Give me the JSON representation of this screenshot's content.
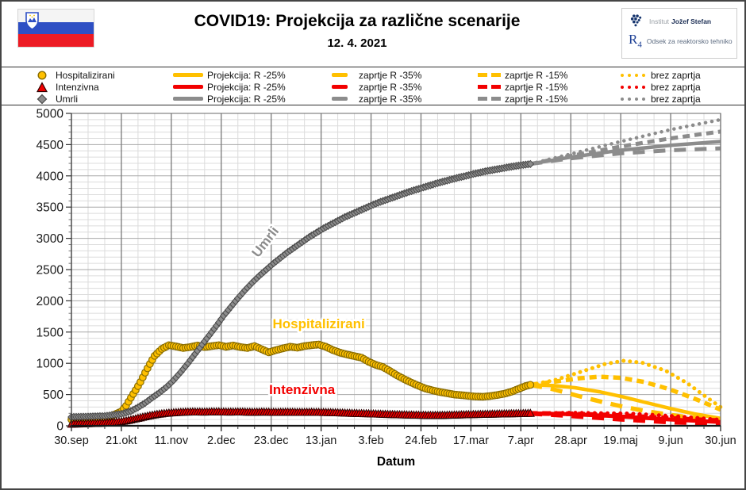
{
  "header": {
    "title": "COVID19: Projekcija za različne scenarije",
    "date": "12. 4. 2021",
    "flag": "slovenia-flag",
    "logo": {
      "institute_light": "Institut",
      "institute_bold": "Jožef Stefan",
      "r": "R",
      "r_sub": "4",
      "dept": "Odsek za reaktorsko tehniko"
    }
  },
  "legend": {
    "rows": [
      {
        "series": "Hospitalizirani",
        "marker": "circle",
        "color": "#FFC000",
        "outline": "#8A6D00",
        "items": [
          "Projekcija: R -25%",
          "zaprtje R -35%",
          "zaprtje R -15%",
          "brez zaprtja"
        ]
      },
      {
        "series": "Intenzivna",
        "marker": "triangle",
        "color": "#F20000",
        "outline": "#2D0000",
        "items": [
          "Projekcija: R -25%",
          "zaprtje R -35%",
          "zaprtje R -15%",
          "brez zaprtja"
        ]
      },
      {
        "series": "Umrli",
        "marker": "diamond",
        "color": "#8C8C8C",
        "outline": "#4A4A4A",
        "items": [
          "Projekcija: R -25%",
          "zaprtje R -35%",
          "zaprtje R -15%",
          "brez zaprtja"
        ]
      }
    ]
  },
  "chart_data": {
    "type": "line",
    "xlabel": "Datum",
    "ylabel": "",
    "ylim": [
      0,
      5000
    ],
    "y_ticks": [
      0,
      500,
      1000,
      1500,
      2000,
      2500,
      3000,
      3500,
      4000,
      4500,
      5000
    ],
    "x_ticks": [
      "30.sep",
      "21.okt",
      "11.nov",
      "2.dec",
      "23.dec",
      "13.jan",
      "3.feb",
      "24.feb",
      "17.mar",
      "7.apr",
      "28.apr",
      "19.maj",
      "9.jun",
      "30.jun"
    ],
    "x_tick_step_days": 21,
    "x_total_days": 273,
    "minor_grid": {
      "y_step": 100,
      "x_step_days": 7
    },
    "grid": "on",
    "legend_position": "top",
    "annotations": [
      {
        "text": "Umrli",
        "day": 83,
        "value": 2900,
        "rotate": -52,
        "color": "#8C8C8C"
      },
      {
        "text": "Hospitalizirani",
        "day": 104,
        "value": 1560,
        "rotate": 0,
        "color": "#FFC000"
      },
      {
        "text": "Intenzivna",
        "day": 97,
        "value": 505,
        "rotate": 0,
        "color": "#F20000"
      }
    ],
    "series": [
      {
        "name": "Hospitalizirani Projekcija: R -25%",
        "kind": "proj",
        "style": "solid",
        "color": "#FFC000",
        "w": 4.5,
        "points": [
          [
            193,
            655
          ],
          [
            203,
            642
          ],
          [
            212,
            608
          ],
          [
            222,
            545
          ],
          [
            232,
            462
          ],
          [
            242,
            368
          ],
          [
            252,
            275
          ],
          [
            262,
            190
          ],
          [
            273,
            118
          ]
        ]
      },
      {
        "name": "Hospitalizirani zaprtje R -35%",
        "kind": "proj",
        "style": "dash-long",
        "color": "#FFC000",
        "w": 5.5,
        "points": [
          [
            193,
            655
          ],
          [
            202,
            590
          ],
          [
            212,
            488
          ],
          [
            222,
            392
          ],
          [
            232,
            305
          ],
          [
            242,
            232
          ],
          [
            252,
            172
          ],
          [
            262,
            125
          ],
          [
            273,
            88
          ]
        ]
      },
      {
        "name": "Hospitalizirani zaprtje R -15%",
        "kind": "proj",
        "style": "dash-med",
        "color": "#FFC000",
        "w": 5.5,
        "points": [
          [
            193,
            655
          ],
          [
            203,
            705
          ],
          [
            214,
            762
          ],
          [
            222,
            785
          ],
          [
            231,
            768
          ],
          [
            241,
            700
          ],
          [
            251,
            590
          ],
          [
            261,
            450
          ],
          [
            268,
            340
          ],
          [
            273,
            258
          ]
        ]
      },
      {
        "name": "Hospitalizirani brez zaprtja",
        "kind": "proj",
        "style": "dotted",
        "color": "#FFC000",
        "w": 5,
        "points": [
          [
            193,
            655
          ],
          [
            203,
            728
          ],
          [
            214,
            860
          ],
          [
            224,
            985
          ],
          [
            232,
            1040
          ],
          [
            240,
            1010
          ],
          [
            250,
            880
          ],
          [
            259,
            680
          ],
          [
            267,
            460
          ],
          [
            273,
            300
          ]
        ]
      },
      {
        "name": "Umrli Projekcija: R -25%",
        "kind": "proj",
        "style": "solid",
        "color": "#8C8C8C",
        "w": 4.5,
        "points": [
          [
            193,
            4190
          ],
          [
            210,
            4300
          ],
          [
            231,
            4410
          ],
          [
            252,
            4490
          ],
          [
            273,
            4550
          ]
        ]
      },
      {
        "name": "Umrli zaprtje R -35%",
        "kind": "proj",
        "style": "dash-long",
        "color": "#8C8C8C",
        "w": 5,
        "points": [
          [
            193,
            4190
          ],
          [
            210,
            4280
          ],
          [
            231,
            4360
          ],
          [
            252,
            4410
          ],
          [
            273,
            4440
          ]
        ]
      },
      {
        "name": "Umrli zaprtje R -15%",
        "kind": "proj",
        "style": "dash-med",
        "color": "#8C8C8C",
        "w": 5,
        "points": [
          [
            193,
            4190
          ],
          [
            210,
            4320
          ],
          [
            231,
            4470
          ],
          [
            252,
            4600
          ],
          [
            273,
            4710
          ]
        ]
      },
      {
        "name": "Umrli brez zaprtja",
        "kind": "proj",
        "style": "dotted",
        "color": "#8C8C8C",
        "w": 4.5,
        "points": [
          [
            193,
            4190
          ],
          [
            210,
            4350
          ],
          [
            231,
            4550
          ],
          [
            252,
            4740
          ],
          [
            273,
            4900
          ]
        ]
      },
      {
        "name": "Intenzivna Projekcija: R -25%",
        "kind": "proj",
        "style": "solid",
        "color": "#F20000",
        "w": 5,
        "points": [
          [
            193,
            198
          ],
          [
            210,
            185
          ],
          [
            231,
            150
          ],
          [
            252,
            100
          ],
          [
            273,
            60
          ]
        ]
      },
      {
        "name": "Intenzivna zaprtje R -35%",
        "kind": "proj",
        "style": "dash-long",
        "color": "#F20000",
        "w": 6,
        "points": [
          [
            193,
            198
          ],
          [
            210,
            160
          ],
          [
            231,
            105
          ],
          [
            252,
            60
          ],
          [
            273,
            35
          ]
        ]
      },
      {
        "name": "Intenzivna zaprtje R -15%",
        "kind": "proj",
        "style": "dash-med",
        "color": "#F20000",
        "w": 6,
        "points": [
          [
            193,
            198
          ],
          [
            210,
            192
          ],
          [
            231,
            165
          ],
          [
            252,
            118
          ],
          [
            273,
            80
          ]
        ]
      },
      {
        "name": "Intenzivna brez zaprtja",
        "kind": "proj",
        "style": "dotted",
        "color": "#F20000",
        "w": 5,
        "points": [
          [
            193,
            198
          ],
          [
            210,
            208
          ],
          [
            235,
            195
          ],
          [
            255,
            150
          ],
          [
            273,
            95
          ]
        ]
      },
      {
        "name": "Hospitalizirani",
        "kind": "data",
        "marker": "circle",
        "color": "#FFC000",
        "outline": "#8A6D00",
        "line_w": 3,
        "points": [
          [
            0,
            100
          ],
          [
            4,
            105
          ],
          [
            7,
            110
          ],
          [
            10,
            120
          ],
          [
            14,
            135
          ],
          [
            17,
            160
          ],
          [
            21,
            230
          ],
          [
            23,
            320
          ],
          [
            25,
            450
          ],
          [
            27,
            570
          ],
          [
            29,
            700
          ],
          [
            31,
            850
          ],
          [
            33,
            990
          ],
          [
            35,
            1120
          ],
          [
            38,
            1230
          ],
          [
            41,
            1290
          ],
          [
            44,
            1270
          ],
          [
            47,
            1245
          ],
          [
            50,
            1260
          ],
          [
            53,
            1285
          ],
          [
            56,
            1260
          ],
          [
            59,
            1275
          ],
          [
            62,
            1290
          ],
          [
            65,
            1265
          ],
          [
            68,
            1285
          ],
          [
            71,
            1260
          ],
          [
            74,
            1245
          ],
          [
            77,
            1275
          ],
          [
            80,
            1225
          ],
          [
            83,
            1175
          ],
          [
            86,
            1210
          ],
          [
            89,
            1240
          ],
          [
            92,
            1265
          ],
          [
            95,
            1250
          ],
          [
            98,
            1275
          ],
          [
            101,
            1290
          ],
          [
            104,
            1300
          ],
          [
            107,
            1265
          ],
          [
            110,
            1210
          ],
          [
            113,
            1170
          ],
          [
            116,
            1140
          ],
          [
            119,
            1115
          ],
          [
            122,
            1090
          ],
          [
            125,
            1025
          ],
          [
            128,
            975
          ],
          [
            131,
            940
          ],
          [
            134,
            875
          ],
          [
            137,
            805
          ],
          [
            140,
            745
          ],
          [
            143,
            690
          ],
          [
            146,
            640
          ],
          [
            149,
            595
          ],
          [
            152,
            565
          ],
          [
            155,
            540
          ],
          [
            158,
            520
          ],
          [
            161,
            500
          ],
          [
            164,
            490
          ],
          [
            167,
            478
          ],
          [
            170,
            468
          ],
          [
            173,
            465
          ],
          [
            176,
            475
          ],
          [
            179,
            492
          ],
          [
            182,
            512
          ],
          [
            185,
            545
          ],
          [
            188,
            590
          ],
          [
            191,
            635
          ],
          [
            193,
            655
          ]
        ]
      },
      {
        "name": "Umrli",
        "kind": "data",
        "marker": "diamond",
        "color": "#8C8C8C",
        "outline": "#4A4A4A",
        "line_w": 4,
        "points": [
          [
            0,
            140
          ],
          [
            7,
            146
          ],
          [
            14,
            156
          ],
          [
            21,
            190
          ],
          [
            25,
            235
          ],
          [
            28,
            295
          ],
          [
            31,
            365
          ],
          [
            34,
            450
          ],
          [
            37,
            530
          ],
          [
            40,
            620
          ],
          [
            43,
            730
          ],
          [
            46,
            860
          ],
          [
            49,
            1000
          ],
          [
            52,
            1150
          ],
          [
            55,
            1300
          ],
          [
            58,
            1450
          ],
          [
            61,
            1600
          ],
          [
            64,
            1760
          ],
          [
            67,
            1900
          ],
          [
            70,
            2040
          ],
          [
            73,
            2170
          ],
          [
            76,
            2290
          ],
          [
            79,
            2400
          ],
          [
            82,
            2500
          ],
          [
            85,
            2600
          ],
          [
            88,
            2690
          ],
          [
            91,
            2780
          ],
          [
            94,
            2860
          ],
          [
            97,
            2940
          ],
          [
            100,
            3020
          ],
          [
            103,
            3090
          ],
          [
            106,
            3160
          ],
          [
            109,
            3220
          ],
          [
            112,
            3280
          ],
          [
            115,
            3340
          ],
          [
            118,
            3390
          ],
          [
            121,
            3440
          ],
          [
            124,
            3490
          ],
          [
            127,
            3540
          ],
          [
            130,
            3585
          ],
          [
            133,
            3625
          ],
          [
            136,
            3665
          ],
          [
            139,
            3705
          ],
          [
            142,
            3745
          ],
          [
            145,
            3780
          ],
          [
            148,
            3815
          ],
          [
            151,
            3850
          ],
          [
            154,
            3885
          ],
          [
            157,
            3915
          ],
          [
            160,
            3945
          ],
          [
            163,
            3975
          ],
          [
            166,
            4000
          ],
          [
            169,
            4030
          ],
          [
            172,
            4055
          ],
          [
            175,
            4080
          ],
          [
            178,
            4100
          ],
          [
            181,
            4120
          ],
          [
            184,
            4140
          ],
          [
            187,
            4160
          ],
          [
            190,
            4175
          ],
          [
            193,
            4190
          ]
        ]
      },
      {
        "name": "Intenzivna",
        "kind": "data",
        "marker": "triangle",
        "color": "#F20000",
        "outline": "#2D0000",
        "line_w": 4,
        "points": [
          [
            0,
            25
          ],
          [
            7,
            32
          ],
          [
            14,
            42
          ],
          [
            18,
            55
          ],
          [
            21,
            65
          ],
          [
            24,
            85
          ],
          [
            27,
            110
          ],
          [
            30,
            135
          ],
          [
            33,
            160
          ],
          [
            36,
            180
          ],
          [
            39,
            195
          ],
          [
            42,
            205
          ],
          [
            45,
            212
          ],
          [
            48,
            218
          ],
          [
            51,
            220
          ],
          [
            56,
            218
          ],
          [
            61,
            222
          ],
          [
            66,
            218
          ],
          [
            71,
            220
          ],
          [
            76,
            215
          ],
          [
            81,
            218
          ],
          [
            86,
            214
          ],
          [
            91,
            217
          ],
          [
            96,
            213
          ],
          [
            101,
            215
          ],
          [
            106,
            212
          ],
          [
            111,
            208
          ],
          [
            116,
            200
          ],
          [
            121,
            195
          ],
          [
            126,
            190
          ],
          [
            131,
            183
          ],
          [
            136,
            177
          ],
          [
            141,
            172
          ],
          [
            146,
            168
          ],
          [
            151,
            165
          ],
          [
            156,
            166
          ],
          [
            161,
            170
          ],
          [
            166,
            176
          ],
          [
            171,
            180
          ],
          [
            176,
            184
          ],
          [
            181,
            188
          ],
          [
            186,
            192
          ],
          [
            191,
            196
          ],
          [
            193,
            198
          ]
        ]
      }
    ]
  }
}
